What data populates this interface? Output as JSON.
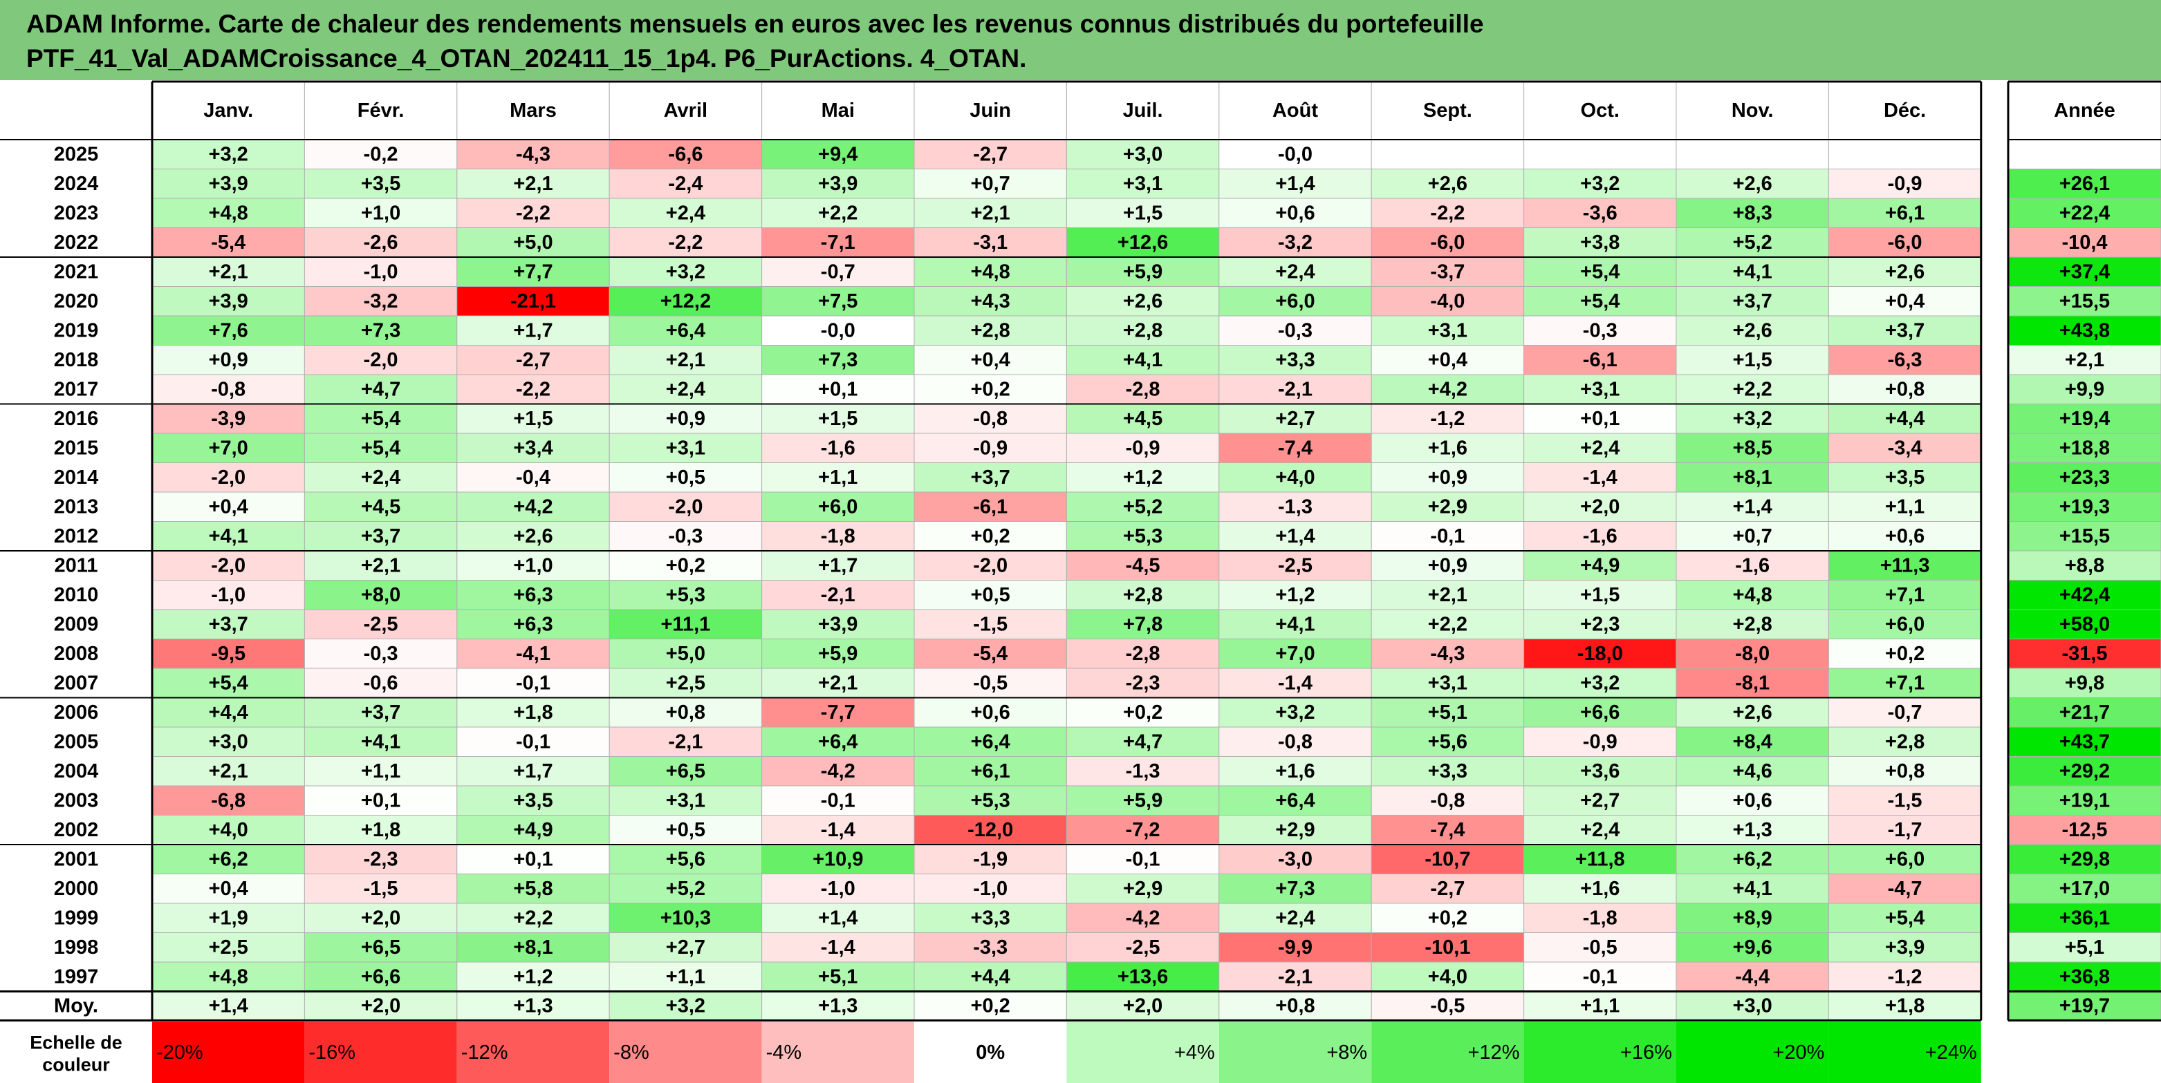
{
  "title": {
    "line1": "ADAM Informe. Carte de chaleur des rendements mensuels en euros avec les revenus connus distribués du portefeuille",
    "line2": "PTF_41_Val_ADAMCroissance_4_OTAN_202411_15_1p4. P6_PurActions. 4_OTAN."
  },
  "colors": {
    "title_band": "#80c97c",
    "negative_max": "#ff0000",
    "positive_max": "#00e600",
    "neutral": "#ffffff",
    "grid": "#b0b0b0",
    "border": "#000000"
  },
  "chart_data": {
    "type": "heatmap",
    "columns": [
      "Janv.",
      "Févr.",
      "Mars",
      "Avril",
      "Mai",
      "Juin",
      "Juil.",
      "Août",
      "Sept.",
      "Oct.",
      "Nov.",
      "Déc."
    ],
    "annual_header": "Année",
    "rows": [
      {
        "label": "2025",
        "months": [
          "+3,2",
          "-0,2",
          "-4,3",
          "-6,6",
          "+9,4",
          "-2,7",
          "+3,0",
          "-0,0",
          "",
          "",
          "",
          ""
        ],
        "annual": ""
      },
      {
        "label": "2024",
        "months": [
          "+3,9",
          "+3,5",
          "+2,1",
          "-2,4",
          "+3,9",
          "+0,7",
          "+3,1",
          "+1,4",
          "+2,6",
          "+3,2",
          "+2,6",
          "-0,9"
        ],
        "annual": "+26,1"
      },
      {
        "label": "2023",
        "months": [
          "+4,8",
          "+1,0",
          "-2,2",
          "+2,4",
          "+2,2",
          "+2,1",
          "+1,5",
          "+0,6",
          "-2,2",
          "-3,6",
          "+8,3",
          "+6,1"
        ],
        "annual": "+22,4"
      },
      {
        "label": "2022",
        "months": [
          "-5,4",
          "-2,6",
          "+5,0",
          "-2,2",
          "-7,1",
          "-3,1",
          "+12,6",
          "-3,2",
          "-6,0",
          "+3,8",
          "+5,2",
          "-6,0"
        ],
        "annual": "-10,4"
      },
      {
        "label": "2021",
        "months": [
          "+2,1",
          "-1,0",
          "+7,7",
          "+3,2",
          "-0,7",
          "+4,8",
          "+5,9",
          "+2,4",
          "-3,7",
          "+5,4",
          "+4,1",
          "+2,6"
        ],
        "annual": "+37,4"
      },
      {
        "label": "2020",
        "months": [
          "+3,9",
          "-3,2",
          "-21,1",
          "+12,2",
          "+7,5",
          "+4,3",
          "+2,6",
          "+6,0",
          "-4,0",
          "+5,4",
          "+3,7",
          "+0,4"
        ],
        "annual": "+15,5"
      },
      {
        "label": "2019",
        "months": [
          "+7,6",
          "+7,3",
          "+1,7",
          "+6,4",
          "-0,0",
          "+2,8",
          "+2,8",
          "-0,3",
          "+3,1",
          "-0,3",
          "+2,6",
          "+3,7"
        ],
        "annual": "+43,8"
      },
      {
        "label": "2018",
        "months": [
          "+0,9",
          "-2,0",
          "-2,7",
          "+2,1",
          "+7,3",
          "+0,4",
          "+4,1",
          "+3,3",
          "+0,4",
          "-6,1",
          "+1,5",
          "-6,3"
        ],
        "annual": "+2,1"
      },
      {
        "label": "2017",
        "months": [
          "-0,8",
          "+4,7",
          "-2,2",
          "+2,4",
          "+0,1",
          "+0,2",
          "-2,8",
          "-2,1",
          "+4,2",
          "+3,1",
          "+2,2",
          "+0,8"
        ],
        "annual": "+9,9"
      },
      {
        "label": "2016",
        "months": [
          "-3,9",
          "+5,4",
          "+1,5",
          "+0,9",
          "+1,5",
          "-0,8",
          "+4,5",
          "+2,7",
          "-1,2",
          "+0,1",
          "+3,2",
          "+4,4"
        ],
        "annual": "+19,4"
      },
      {
        "label": "2015",
        "months": [
          "+7,0",
          "+5,4",
          "+3,4",
          "+3,1",
          "-1,6",
          "-0,9",
          "-0,9",
          "-7,4",
          "+1,6",
          "+2,4",
          "+8,5",
          "-3,4"
        ],
        "annual": "+18,8"
      },
      {
        "label": "2014",
        "months": [
          "-2,0",
          "+2,4",
          "-0,4",
          "+0,5",
          "+1,1",
          "+3,7",
          "+1,2",
          "+4,0",
          "+0,9",
          "-1,4",
          "+8,1",
          "+3,5"
        ],
        "annual": "+23,3"
      },
      {
        "label": "2013",
        "months": [
          "+0,4",
          "+4,5",
          "+4,2",
          "-2,0",
          "+6,0",
          "-6,1",
          "+5,2",
          "-1,3",
          "+2,9",
          "+2,0",
          "+1,4",
          "+1,1"
        ],
        "annual": "+19,3"
      },
      {
        "label": "2012",
        "months": [
          "+4,1",
          "+3,7",
          "+2,6",
          "-0,3",
          "-1,8",
          "+0,2",
          "+5,3",
          "+1,4",
          "-0,1",
          "-1,6",
          "+0,7",
          "+0,6"
        ],
        "annual": "+15,5"
      },
      {
        "label": "2011",
        "months": [
          "-2,0",
          "+2,1",
          "+1,0",
          "+0,2",
          "+1,7",
          "-2,0",
          "-4,5",
          "-2,5",
          "+0,9",
          "+4,9",
          "-1,6",
          "+11,3"
        ],
        "annual": "+8,8"
      },
      {
        "label": "2010",
        "months": [
          "-1,0",
          "+8,0",
          "+6,3",
          "+5,3",
          "-2,1",
          "+0,5",
          "+2,8",
          "+1,2",
          "+2,1",
          "+1,5",
          "+4,8",
          "+7,1"
        ],
        "annual": "+42,4"
      },
      {
        "label": "2009",
        "months": [
          "+3,7",
          "-2,5",
          "+6,3",
          "+11,1",
          "+3,9",
          "-1,5",
          "+7,8",
          "+4,1",
          "+2,2",
          "+2,3",
          "+2,8",
          "+6,0"
        ],
        "annual": "+58,0"
      },
      {
        "label": "2008",
        "months": [
          "-9,5",
          "-0,3",
          "-4,1",
          "+5,0",
          "+5,9",
          "-5,4",
          "-2,8",
          "+7,0",
          "-4,3",
          "-18,0",
          "-8,0",
          "+0,2"
        ],
        "annual": "-31,5"
      },
      {
        "label": "2007",
        "months": [
          "+5,4",
          "-0,6",
          "-0,1",
          "+2,5",
          "+2,1",
          "-0,5",
          "-2,3",
          "-1,4",
          "+3,1",
          "+3,2",
          "-8,1",
          "+7,1"
        ],
        "annual": "+9,8"
      },
      {
        "label": "2006",
        "months": [
          "+4,4",
          "+3,7",
          "+1,8",
          "+0,8",
          "-7,7",
          "+0,6",
          "+0,2",
          "+3,2",
          "+5,1",
          "+6,6",
          "+2,6",
          "-0,7"
        ],
        "annual": "+21,7"
      },
      {
        "label": "2005",
        "months": [
          "+3,0",
          "+4,1",
          "-0,1",
          "-2,1",
          "+6,4",
          "+6,4",
          "+4,7",
          "-0,8",
          "+5,6",
          "-0,9",
          "+8,4",
          "+2,8"
        ],
        "annual": "+43,7"
      },
      {
        "label": "2004",
        "months": [
          "+2,1",
          "+1,1",
          "+1,7",
          "+6,5",
          "-4,2",
          "+6,1",
          "-1,3",
          "+1,6",
          "+3,3",
          "+3,6",
          "+4,6",
          "+0,8"
        ],
        "annual": "+29,2"
      },
      {
        "label": "2003",
        "months": [
          "-6,8",
          "+0,1",
          "+3,5",
          "+3,1",
          "-0,1",
          "+5,3",
          "+5,9",
          "+6,4",
          "-0,8",
          "+2,7",
          "+0,6",
          "-1,5"
        ],
        "annual": "+19,1"
      },
      {
        "label": "2002",
        "months": [
          "+4,0",
          "+1,8",
          "+4,9",
          "+0,5",
          "-1,4",
          "-12,0",
          "-7,2",
          "+2,9",
          "-7,4",
          "+2,4",
          "+1,3",
          "-1,7"
        ],
        "annual": "-12,5"
      },
      {
        "label": "2001",
        "months": [
          "+6,2",
          "-2,3",
          "+0,1",
          "+5,6",
          "+10,9",
          "-1,9",
          "-0,1",
          "-3,0",
          "-10,7",
          "+11,8",
          "+6,2",
          "+6,0"
        ],
        "annual": "+29,8"
      },
      {
        "label": "2000",
        "months": [
          "+0,4",
          "-1,5",
          "+5,8",
          "+5,2",
          "-1,0",
          "-1,0",
          "+2,9",
          "+7,3",
          "-2,7",
          "+1,6",
          "+4,1",
          "-4,7"
        ],
        "annual": "+17,0"
      },
      {
        "label": "1999",
        "months": [
          "+1,9",
          "+2,0",
          "+2,2",
          "+10,3",
          "+1,4",
          "+3,3",
          "-4,2",
          "+2,4",
          "+0,2",
          "-1,8",
          "+8,9",
          "+5,4"
        ],
        "annual": "+36,1"
      },
      {
        "label": "1998",
        "months": [
          "+2,5",
          "+6,5",
          "+8,1",
          "+2,7",
          "-1,4",
          "-3,3",
          "-2,5",
          "-9,9",
          "-10,1",
          "-0,5",
          "+9,6",
          "+3,9"
        ],
        "annual": "+5,1"
      },
      {
        "label": "1997",
        "months": [
          "+4,8",
          "+6,6",
          "+1,2",
          "+1,1",
          "+5,1",
          "+4,4",
          "+13,6",
          "-2,1",
          "+4,0",
          "-0,1",
          "-4,4",
          "-1,2"
        ],
        "annual": "+36,8"
      }
    ],
    "average_row": {
      "label": "Moy.",
      "months": [
        "+1,4",
        "+2,0",
        "+1,3",
        "+3,2",
        "+1,3",
        "+0,2",
        "+2,0",
        "+0,8",
        "-0,5",
        "+1,1",
        "+3,0",
        "+1,8"
      ],
      "annual": "+19,7"
    },
    "color_scale": {
      "label_line1": "Echelle de",
      "label_line2": "couleur",
      "steps": [
        {
          "label": "-20%",
          "value": -20
        },
        {
          "label": "-16%",
          "value": -16
        },
        {
          "label": "-12%",
          "value": -12
        },
        {
          "label": "-8%",
          "value": -8
        },
        {
          "label": "-4%",
          "value": -4
        },
        {
          "label": "0%",
          "value": 0
        },
        {
          "label": "+4%",
          "value": 4
        },
        {
          "label": "+8%",
          "value": 8
        },
        {
          "label": "+12%",
          "value": 12
        },
        {
          "label": "+16%",
          "value": 16
        },
        {
          "label": "+20%",
          "value": 20
        },
        {
          "label": "+24%",
          "value": 24
        }
      ]
    }
  }
}
